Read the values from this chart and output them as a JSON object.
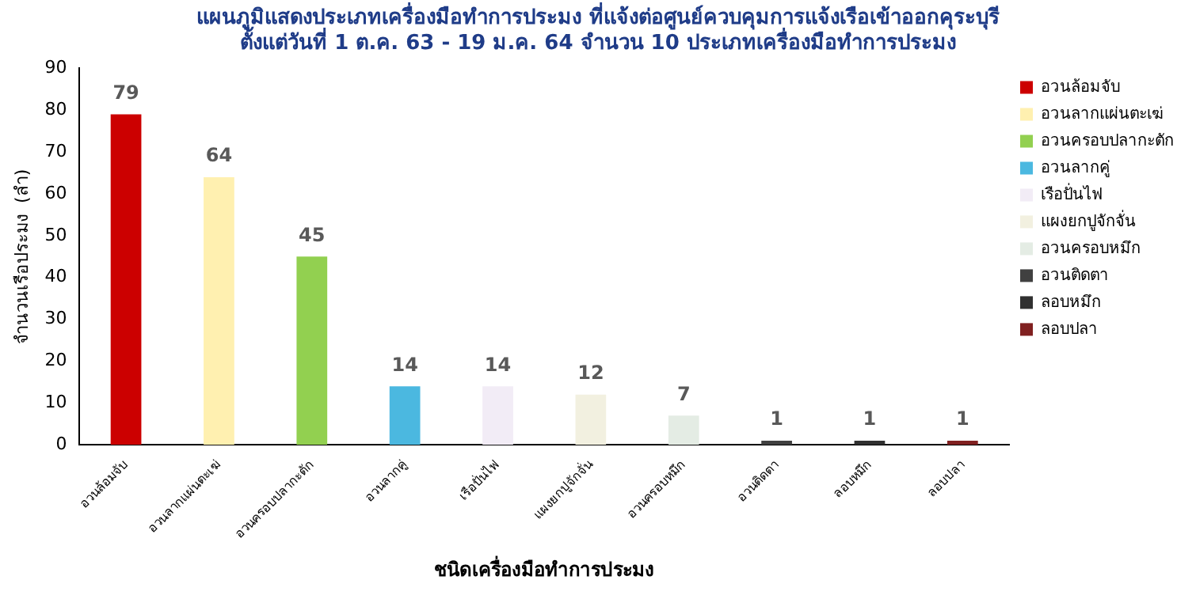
{
  "chart_data": {
    "type": "bar",
    "title": [
      "แผนภูมิแสดงประเภทเครื่องมือทำการประมง ที่แจ้งต่อศูนย์ควบคุมการแจ้งเรือเข้าออกคุระบุรี",
      "ตั้งแต่วันที่ 1 ต.ค. 63 - 19 ม.ค. 64 จำนวน 10 ประเภทเครื่องมือทำการประมง"
    ],
    "xlabel": "ชนิดเครื่องมือทำการประมง",
    "ylabel": "จำนวนเรือประมง  (ลำ)",
    "categories": [
      "อวนล้อมจับ",
      "อวนลากแผ่นตะเฆ่",
      "อวนครอบปลากะตัก",
      "อวนลากคู่",
      "เรือปั่นไฟ",
      "แผงยกปูจักจั่น",
      "อวนครอบหมึก",
      "อวนติดตา",
      "ลอบหมึก",
      "ลอบปลา"
    ],
    "series": [
      {
        "name": "อวนล้อมจับ",
        "color": "#cc0000",
        "values": [
          79,
          null,
          null,
          null,
          null,
          null,
          null,
          null,
          null,
          null
        ]
      },
      {
        "name": "อวนลากแผ่นตะเฆ่",
        "color": "#fff0b0",
        "values": [
          null,
          64,
          null,
          null,
          null,
          null,
          null,
          null,
          null,
          null
        ]
      },
      {
        "name": "อวนครอบปลากะตัก",
        "color": "#92d050",
        "values": [
          null,
          null,
          45,
          null,
          null,
          null,
          null,
          null,
          null,
          null
        ]
      },
      {
        "name": "อวนลากคู่",
        "color": "#4bb8e0",
        "values": [
          null,
          null,
          null,
          14,
          null,
          null,
          null,
          null,
          null,
          null
        ]
      },
      {
        "name": "เรือปั่นไฟ",
        "color": "#f2ecf6",
        "values": [
          null,
          null,
          null,
          null,
          14,
          null,
          null,
          null,
          null,
          null
        ]
      },
      {
        "name": "แผงยกปูจักจั่น",
        "color": "#f2f0e0",
        "values": [
          null,
          null,
          null,
          null,
          null,
          12,
          null,
          null,
          null,
          null
        ]
      },
      {
        "name": "อวนครอบหมึก",
        "color": "#e4ece4",
        "values": [
          null,
          null,
          null,
          null,
          null,
          null,
          7,
          null,
          null,
          null
        ]
      },
      {
        "name": "อวนติดตา",
        "color": "#404040",
        "values": [
          null,
          null,
          null,
          null,
          null,
          null,
          null,
          1,
          null,
          null
        ]
      },
      {
        "name": "ลอบหมึก",
        "color": "#303030",
        "values": [
          null,
          null,
          null,
          null,
          null,
          null,
          null,
          null,
          1,
          null
        ]
      },
      {
        "name": "ลอบปลา",
        "color": "#802020",
        "values": [
          null,
          null,
          null,
          null,
          null,
          null,
          null,
          null,
          null,
          1
        ]
      }
    ],
    "ylim": [
      0,
      90
    ],
    "yticks": [
      0,
      10,
      20,
      30,
      40,
      50,
      60,
      70,
      80,
      90
    ],
    "data_labels": true,
    "grid": false,
    "legend": "right"
  }
}
